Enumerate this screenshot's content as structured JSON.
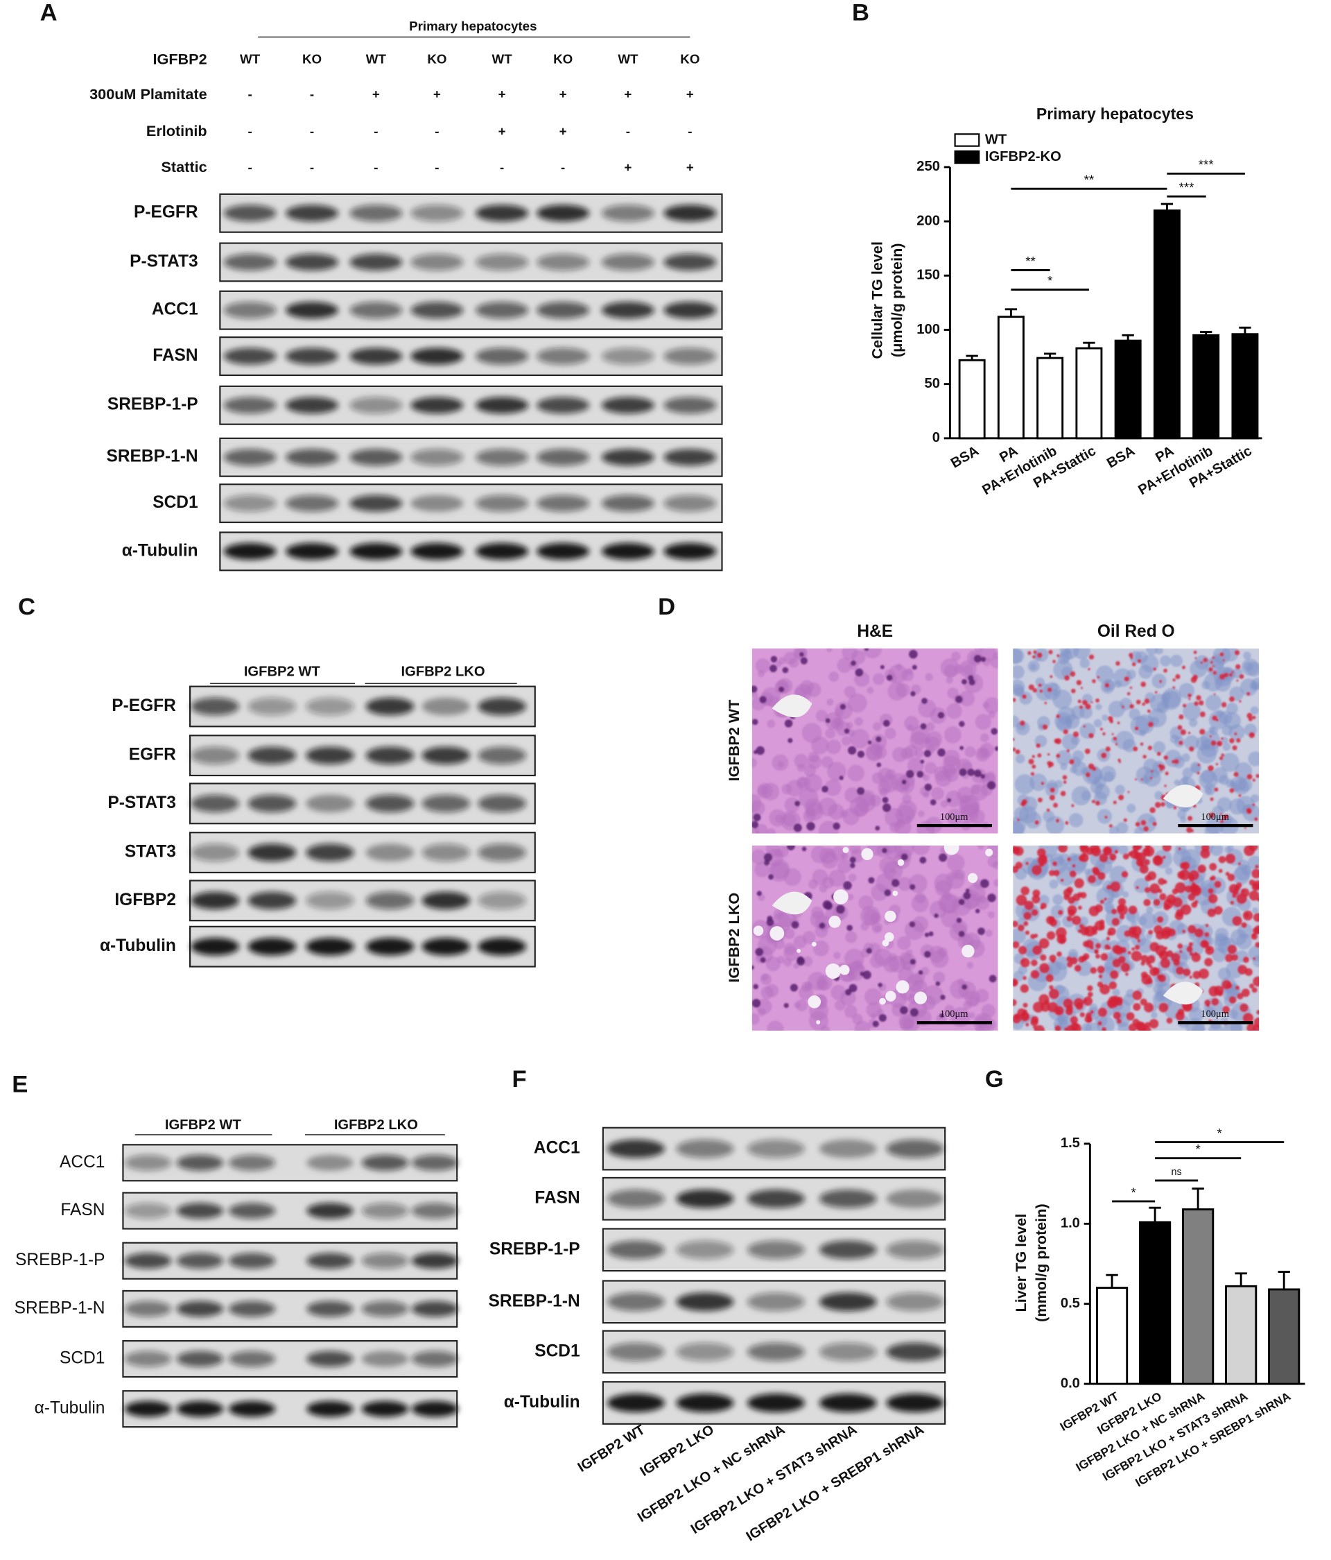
{
  "panel_letters": [
    "A",
    "B",
    "C",
    "D",
    "E",
    "F",
    "G"
  ],
  "blot_a": {
    "header": "Primary hepatocytes",
    "conditions": [
      {
        "label": "IGFBP2",
        "values": [
          "WT",
          "KO",
          "WT",
          "KO",
          "WT",
          "KO",
          "WT",
          "KO"
        ]
      },
      {
        "label": "300uM Plamitate",
        "values": [
          "-",
          "-",
          "+",
          "+",
          "+",
          "+",
          "+",
          "+"
        ]
      },
      {
        "label": "Erlotinib",
        "values": [
          "-",
          "-",
          "-",
          "-",
          "+",
          "+",
          "-",
          "-"
        ]
      },
      {
        "label": "Stattic",
        "values": [
          "-",
          "-",
          "-",
          "-",
          "-",
          "-",
          "+",
          "+"
        ]
      }
    ],
    "proteins": [
      "P-EGFR",
      "P-STAT3",
      "ACC1",
      "FASN",
      "SREBP-1-P",
      "SREBP-1-N",
      "SCD1",
      "α-Tubulin"
    ]
  },
  "chart_data": [
    {
      "type": "bar",
      "title": "Primary hepatocytes",
      "y_label": [
        "Cellular TG level",
        "(μmol/g protein)"
      ],
      "categories": [
        "BSA",
        "PA",
        "PA+Erlotinib",
        "PA+Stattic",
        "BSA",
        "PA",
        "PA+Erlotinib",
        "PA+Stattic"
      ],
      "series": [
        {
          "name": "WT",
          "color": "#ffffff",
          "values": [
            72,
            112,
            74,
            83,
            null,
            null,
            null,
            null
          ],
          "errors": [
            4,
            7,
            4,
            5,
            null,
            null,
            null,
            null
          ]
        },
        {
          "name": "IGFBP2-KO",
          "color": "#000000",
          "values": [
            null,
            null,
            null,
            null,
            90,
            210,
            95,
            96
          ],
          "errors": [
            null,
            null,
            null,
            null,
            5,
            6,
            3,
            6
          ]
        }
      ],
      "ylim": [
        0,
        250
      ],
      "yticks": [
        0,
        50,
        100,
        150,
        200,
        250
      ],
      "annotations": [
        {
          "text": "**",
          "between": [
            1,
            5
          ],
          "y": 230
        },
        {
          "text": "**",
          "between": [
            1,
            2
          ],
          "y": 155
        },
        {
          "text": "*",
          "between": [
            1,
            3
          ],
          "y": 137
        },
        {
          "text": "***",
          "between": [
            5,
            6
          ],
          "y": 223
        },
        {
          "text": "***",
          "between": [
            5,
            7
          ],
          "y": 244
        }
      ]
    },
    {
      "type": "bar",
      "y_label": [
        "Liver TG level",
        "(mmol/g protein)"
      ],
      "categories": [
        "IGFBP2 WT",
        "IGFBP2 LKO",
        "IGFBP2 LKO + NC shRNA",
        "IGFBP2 LKO + STAT3 shRNA",
        "IGFBP2 LKO + SREBP1 shRNA"
      ],
      "values": [
        0.6,
        1.01,
        1.09,
        0.61,
        0.59
      ],
      "errors": [
        0.08,
        0.09,
        0.13,
        0.08,
        0.11
      ],
      "colors": [
        "#ffffff",
        "#000000",
        "#808080",
        "#d3d3d3",
        "#595959"
      ],
      "ylim": [
        0,
        1.5
      ],
      "yticks": [
        {
          "value": 0,
          "label": "0.0"
        },
        0.5,
        {
          "value": 1,
          "label": "1.0"
        },
        1.5
      ],
      "annotations": [
        {
          "text": "*",
          "between": [
            0,
            1
          ],
          "y": 1.14
        },
        {
          "text": "ns",
          "between": [
            1,
            2
          ],
          "y": 1.27
        },
        {
          "text": "*",
          "between": [
            1,
            3
          ],
          "y": 1.41
        },
        {
          "text": "*",
          "between": [
            1,
            4
          ],
          "y": 1.51
        }
      ]
    }
  ],
  "blot_c": {
    "groups": [
      "IGFBP2 WT",
      "IGFBP2 LKO"
    ],
    "proteins": [
      "P-EGFR",
      "EGFR",
      "P-STAT3",
      "STAT3",
      "IGFBP2",
      "α-Tubulin"
    ]
  },
  "histology": {
    "columns": [
      "H&E",
      "Oil Red O"
    ],
    "rows": [
      "IGFBP2 WT",
      "IGFBP2 LKO"
    ],
    "scale_bar": "100μm"
  },
  "blot_e": {
    "groups": [
      "IGFBP2 WT",
      "IGFBP2 LKO"
    ],
    "proteins": [
      "ACC1",
      "FASN",
      "SREBP-1-P",
      "SREBP-1-N",
      "SCD1",
      "α-Tubulin"
    ]
  },
  "blot_f": {
    "proteins": [
      "ACC1",
      "FASN",
      "SREBP-1-P",
      "SREBP-1-N",
      "SCD1",
      "α-Tubulin"
    ],
    "lanes": [
      "IGFBP2 WT",
      "IGFBP2 LKO",
      "IGFBP2 LKO + NC shRNA",
      "IGFBP2 LKO + STAT3 shRNA",
      "IGFBP2 LKO + SREBP1 shRNA"
    ]
  }
}
